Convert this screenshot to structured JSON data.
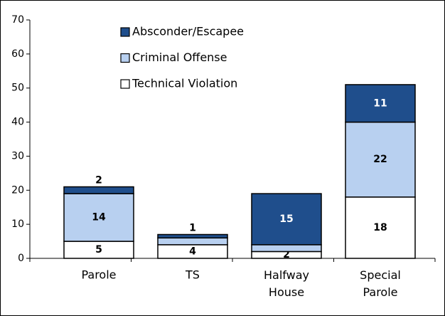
{
  "chart_data": {
    "type": "stacked-bar",
    "categories": [
      "Parole",
      "TS",
      "Halfway House",
      "Special Parole"
    ],
    "series": [
      {
        "name": "Technical Violation",
        "color": "#ffffff",
        "values": [
          5,
          4,
          2,
          18
        ],
        "value_labels": [
          "5",
          "4",
          "2",
          "18"
        ]
      },
      {
        "name": "Criminal Offense",
        "color": "#b8d0f0",
        "values": [
          14,
          2,
          2,
          22
        ],
        "value_labels": [
          "14",
          null,
          null,
          "22"
        ]
      },
      {
        "name": "Absconder/Escapee",
        "color": "#1f4e8c",
        "values": [
          2,
          1,
          15,
          11
        ],
        "value_labels": [
          "2",
          "1",
          "15",
          "11"
        ]
      }
    ],
    "ylim": [
      0,
      70
    ],
    "yticks": [
      0,
      10,
      20,
      30,
      40,
      50,
      60,
      70
    ],
    "legend": "top-left"
  }
}
